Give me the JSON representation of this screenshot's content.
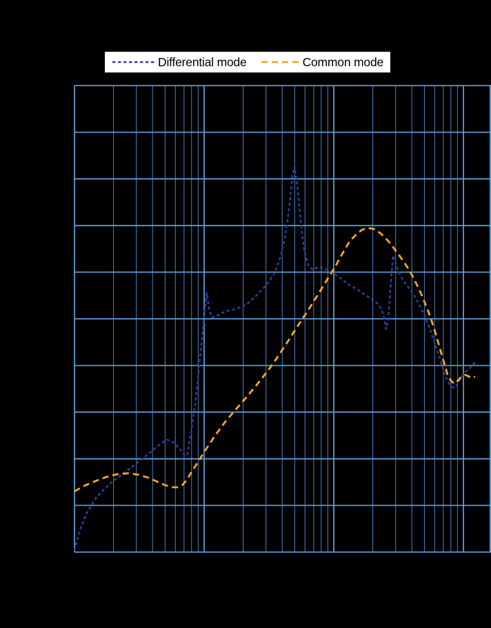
{
  "page": {
    "background": "#000000"
  },
  "legend": {
    "background": "#ffffff",
    "position": "top-center"
  },
  "chart_data": {
    "type": "line",
    "title": "",
    "xlabel": "",
    "ylabel": "",
    "x_axis": {
      "scale": "log",
      "span_decades": 3.21,
      "major_gridlines_decades": [
        0,
        1,
        2,
        3
      ],
      "minor_gridlines": "log-spaced at 2-9 within each decade",
      "tick_labels_visible": false
    },
    "y_axis": {
      "scale": "linear",
      "range": [
        0,
        100
      ],
      "gridline_step": 10,
      "tick_labels_visible": false
    },
    "grid": {
      "major_color": "#5b9bd5",
      "minor_color": "#4a86c6",
      "border_color": "#5b9bd5"
    },
    "series": [
      {
        "name": "Differential mode",
        "color": "#2e3d8f",
        "dasharray": "4.5 3.5",
        "width": 2.6,
        "points": [
          [
            0,
            0.3
          ],
          [
            0.037,
            4.4
          ],
          [
            0.09,
            8.1
          ],
          [
            0.17,
            11.8
          ],
          [
            0.277,
            14.8
          ],
          [
            0.383,
            17.0
          ],
          [
            0.489,
            19.2
          ],
          [
            0.569,
            21.0
          ],
          [
            0.649,
            22.9
          ],
          [
            0.713,
            24.1
          ],
          [
            0.766,
            23.5
          ],
          [
            0.819,
            21.9
          ],
          [
            0.851,
            20.6
          ],
          [
            0.872,
            21.0
          ],
          [
            0.904,
            26.6
          ],
          [
            0.931,
            31.8
          ],
          [
            0.957,
            38.5
          ],
          [
            0.984,
            45.9
          ],
          [
            1.005,
            52.1
          ],
          [
            1.021,
            55.5
          ],
          [
            1.037,
            52.2
          ],
          [
            1.059,
            50.3
          ],
          [
            1.101,
            50.7
          ],
          [
            1.165,
            51.6
          ],
          [
            1.245,
            52.1
          ],
          [
            1.324,
            53.0
          ],
          [
            1.404,
            55.0
          ],
          [
            1.484,
            57.4
          ],
          [
            1.543,
            59.8
          ],
          [
            1.59,
            63.3
          ],
          [
            1.628,
            68.0
          ],
          [
            1.66,
            74.7
          ],
          [
            1.681,
            80.6
          ],
          [
            1.697,
            82.7
          ],
          [
            1.718,
            78.7
          ],
          [
            1.745,
            70.7
          ],
          [
            1.771,
            64.8
          ],
          [
            1.803,
            61.4
          ],
          [
            1.84,
            60.5
          ],
          [
            1.883,
            61.2
          ],
          [
            1.936,
            60.7
          ],
          [
            1.995,
            59.8
          ],
          [
            2.053,
            58.7
          ],
          [
            2.112,
            57.4
          ],
          [
            2.176,
            56.4
          ],
          [
            2.239,
            55.2
          ],
          [
            2.298,
            54.1
          ],
          [
            2.346,
            53.1
          ],
          [
            2.383,
            51.0
          ],
          [
            2.404,
            47.8
          ],
          [
            2.42,
            50.0
          ],
          [
            2.436,
            56.2
          ],
          [
            2.457,
            63.6
          ],
          [
            2.473,
            62.4
          ],
          [
            2.5,
            60.1
          ],
          [
            2.532,
            58.4
          ],
          [
            2.574,
            56.8
          ],
          [
            2.617,
            55.2
          ],
          [
            2.654,
            53.3
          ],
          [
            2.691,
            51.3
          ],
          [
            2.729,
            48.8
          ],
          [
            2.771,
            45.4
          ],
          [
            2.809,
            42.3
          ],
          [
            2.84,
            39.6
          ],
          [
            2.872,
            37.0
          ],
          [
            2.899,
            35.7
          ],
          [
            2.926,
            35.2
          ],
          [
            2.952,
            35.9
          ],
          [
            2.979,
            37.3
          ],
          [
            3.011,
            38.5
          ],
          [
            3.043,
            39.3
          ],
          [
            3.074,
            40.2
          ],
          [
            3.101,
            41.1
          ]
        ]
      },
      {
        "name": "Common mode",
        "color": "#f7a823",
        "dasharray": "9 6",
        "width": 2.8,
        "points": [
          [
            0,
            13.0
          ],
          [
            0.074,
            14.2
          ],
          [
            0.16,
            15.2
          ],
          [
            0.245,
            16.1
          ],
          [
            0.33,
            16.7
          ],
          [
            0.415,
            16.9
          ],
          [
            0.489,
            16.6
          ],
          [
            0.564,
            16.0
          ],
          [
            0.638,
            15.1
          ],
          [
            0.702,
            14.3
          ],
          [
            0.755,
            13.9
          ],
          [
            0.798,
            13.9
          ],
          [
            0.83,
            14.3
          ],
          [
            0.867,
            15.5
          ],
          [
            0.91,
            17.5
          ],
          [
            0.957,
            19.5
          ],
          [
            1.011,
            21.9
          ],
          [
            1.085,
            25.0
          ],
          [
            1.165,
            28.0
          ],
          [
            1.245,
            30.6
          ],
          [
            1.324,
            33.1
          ],
          [
            1.404,
            35.8
          ],
          [
            1.484,
            38.6
          ],
          [
            1.564,
            41.7
          ],
          [
            1.644,
            45.1
          ],
          [
            1.723,
            48.5
          ],
          [
            1.803,
            51.9
          ],
          [
            1.878,
            55.2
          ],
          [
            1.947,
            58.3
          ],
          [
            2.011,
            61.2
          ],
          [
            2.069,
            64.1
          ],
          [
            2.122,
            66.6
          ],
          [
            2.17,
            68.0
          ],
          [
            2.218,
            69.1
          ],
          [
            2.266,
            69.5
          ],
          [
            2.314,
            69.2
          ],
          [
            2.362,
            68.3
          ],
          [
            2.41,
            67.0
          ],
          [
            2.457,
            65.4
          ],
          [
            2.505,
            63.6
          ],
          [
            2.543,
            62.1
          ],
          [
            2.58,
            60.5
          ],
          [
            2.612,
            58.9
          ],
          [
            2.644,
            57.1
          ],
          [
            2.676,
            55.2
          ],
          [
            2.707,
            53.1
          ],
          [
            2.745,
            50.4
          ],
          [
            2.782,
            47.2
          ],
          [
            2.819,
            43.6
          ],
          [
            2.851,
            40.5
          ],
          [
            2.878,
            38.0
          ],
          [
            2.904,
            36.7
          ],
          [
            2.93,
            36.1
          ],
          [
            2.957,
            36.7
          ],
          [
            2.984,
            37.6
          ],
          [
            3.011,
            38.0
          ],
          [
            3.037,
            37.7
          ],
          [
            3.064,
            37.3
          ],
          [
            3.09,
            37.6
          ]
        ]
      }
    ],
    "legend_entries": [
      "Differential mode",
      "Common mode"
    ],
    "legend_position": "top-center"
  }
}
